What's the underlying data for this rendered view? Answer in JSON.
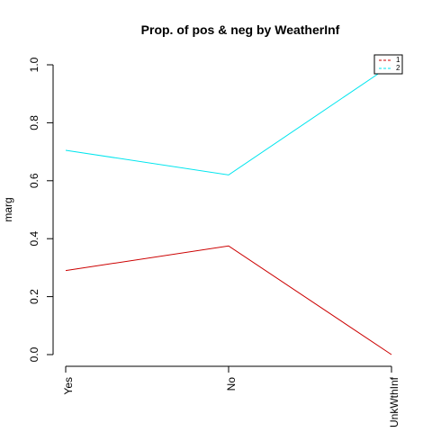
{
  "chart_data": {
    "type": "line",
    "title": "Prop. of pos & neg by WeatherInf",
    "xlabel": "",
    "ylabel": "marg",
    "categories": [
      "Yes",
      "No",
      "UnkWthInf"
    ],
    "ylim": [
      0,
      1
    ],
    "yticks": [
      "0.0",
      "0.2",
      "0.4",
      "0.6",
      "0.8",
      "1.0"
    ],
    "grid": false,
    "legend_position": "top-right",
    "series": [
      {
        "name": "1",
        "values": [
          0.29,
          0.375,
          0.0
        ],
        "color": "#cc0000",
        "dash": "dashed"
      },
      {
        "name": "2",
        "values": [
          0.705,
          0.62,
          1.0
        ],
        "color": "#00e5ee",
        "dash": "dashed"
      }
    ]
  }
}
